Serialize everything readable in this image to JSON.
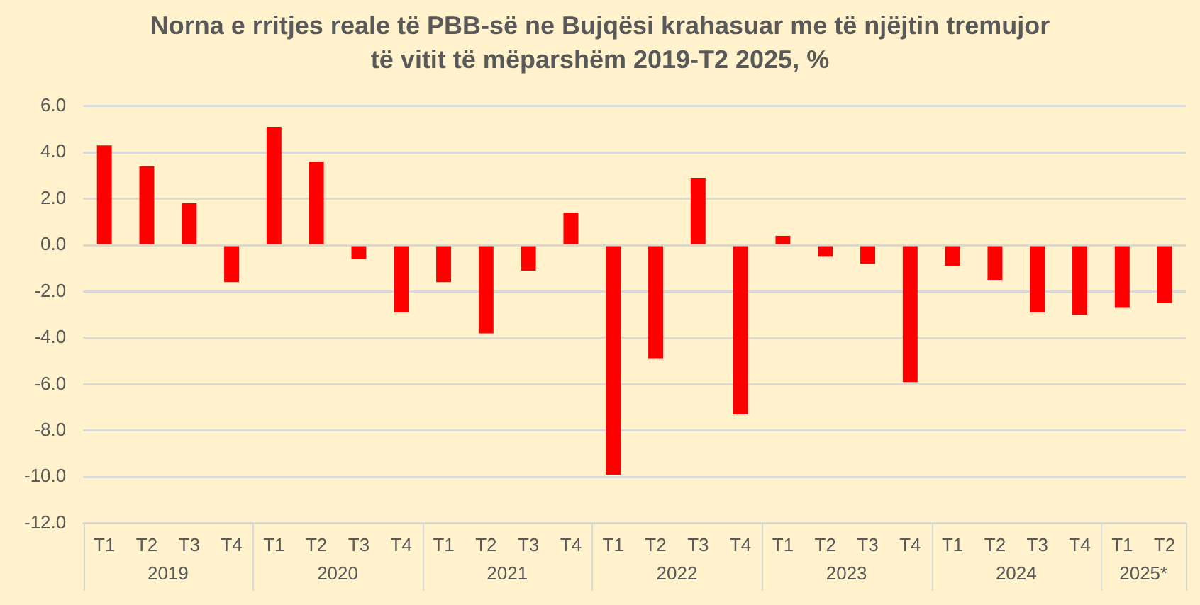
{
  "chart_data": {
    "type": "bar",
    "title": "Norna e rritjes reale të PBB-së ne Bujqësi krahasuar me të njëjtin tremujor të vitit të mëparshëm  2019-T2 2025, %",
    "categories": [
      "T1",
      "T2",
      "T3",
      "T4",
      "T1",
      "T2",
      "T3",
      "T4",
      "T1",
      "T2",
      "T3",
      "T4",
      "T1",
      "T2",
      "T3",
      "T4",
      "T1",
      "T2",
      "T3",
      "T4",
      "T1",
      "T2",
      "T3",
      "T4",
      "T1",
      "T2"
    ],
    "values": [
      4.3,
      3.4,
      1.8,
      -1.6,
      5.1,
      3.6,
      -0.6,
      -2.9,
      -1.6,
      -3.8,
      -1.1,
      1.4,
      -9.9,
      -4.9,
      2.9,
      -7.3,
      0.4,
      -0.5,
      -0.8,
      -5.9,
      -0.9,
      -1.5,
      -2.9,
      -3.0,
      -2.7,
      -2.5
    ],
    "color": "#ff0000",
    "annotations": [
      "2019",
      "2020",
      "2021",
      "2022",
      "2023",
      "2024",
      "2025*"
    ],
    "ylim": [
      -12,
      6
    ],
    "yticks": [
      {
        "value": -12,
        "label": "-12.0"
      },
      {
        "value": -10,
        "label": "-10.0"
      },
      {
        "value": -8,
        "label": "-8.0"
      },
      {
        "value": -6,
        "label": "-6.0"
      },
      {
        "value": -4,
        "label": "-4.0"
      },
      {
        "value": -2,
        "label": "-2.0"
      },
      {
        "value": 0,
        "label": "0.0"
      },
      {
        "value": 2,
        "label": "2.0"
      },
      {
        "value": 4,
        "label": "4.0"
      },
      {
        "value": 6,
        "label": "6.0"
      }
    ],
    "grid": "y",
    "legend": false
  }
}
